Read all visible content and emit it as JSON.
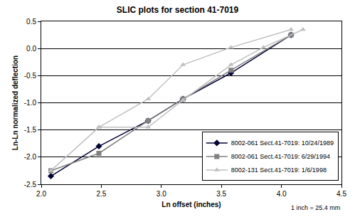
{
  "chart_data": {
    "type": "line",
    "title": "SLIC plots for section 41-7019",
    "x_label": "Ln offset (inches)",
    "y_label": "Ln-Ln normalized deflection",
    "annotations": [
      "1 inch = 25.4 mm"
    ],
    "xlim": [
      2.0,
      4.5
    ],
    "xticks": [
      {
        "value": 2.0,
        "label": "2.0"
      },
      2.5,
      {
        "value": 3.0,
        "label": "3.0"
      },
      3.5,
      {
        "value": 4.0,
        "label": "4.0"
      },
      4.5
    ],
    "ylim": [
      -2.5,
      0.5
    ],
    "yticks": [
      -2.5,
      {
        "value": -2.0,
        "label": "-2.0"
      },
      -1.5,
      {
        "value": -1.0,
        "label": "-1.0"
      },
      -0.5,
      {
        "value": 0.0,
        "label": "0.0"
      },
      0.5
    ],
    "grid": true,
    "legend": "lower right",
    "series": [
      {
        "name": "8002-061 Sect.41-7019: 10/24/1989",
        "color": "#000033",
        "marker": "diamond",
        "line_style": "solid",
        "x": [
          2.08,
          2.48,
          2.89,
          3.18,
          3.58,
          4.08
        ],
        "values": [
          -2.35,
          -1.8,
          -1.33,
          -0.93,
          -0.45,
          0.25
        ]
      },
      {
        "name": "8002-061 Sect.41-7019: 6/29/1994",
        "color": "#808080",
        "marker": "square",
        "line_style": "solid",
        "x": [
          2.08,
          2.48,
          2.89,
          3.18,
          3.58,
          4.08
        ],
        "values": [
          -2.25,
          -1.93,
          -1.33,
          -0.93,
          -0.4,
          0.25
        ]
      },
      {
        "name": "8002-131 Sect.41-7019: 1/6/1998",
        "color": "#c0c0c0",
        "marker": "triangle-up",
        "line_style": "solid",
        "x": [
          2.08,
          2.48,
          2.89,
          3.18,
          3.58,
          4.08,
          4.08,
          2.48,
          2.89,
          3.18,
          3.58,
          3.85,
          4.18
        ],
        "values": [
          -2.25,
          -1.45,
          -0.93,
          -0.3,
          0.02,
          0.35,
          null,
          -1.45,
          -1.45,
          -0.95,
          -0.3,
          0.02,
          0.35
        ]
      }
    ]
  }
}
